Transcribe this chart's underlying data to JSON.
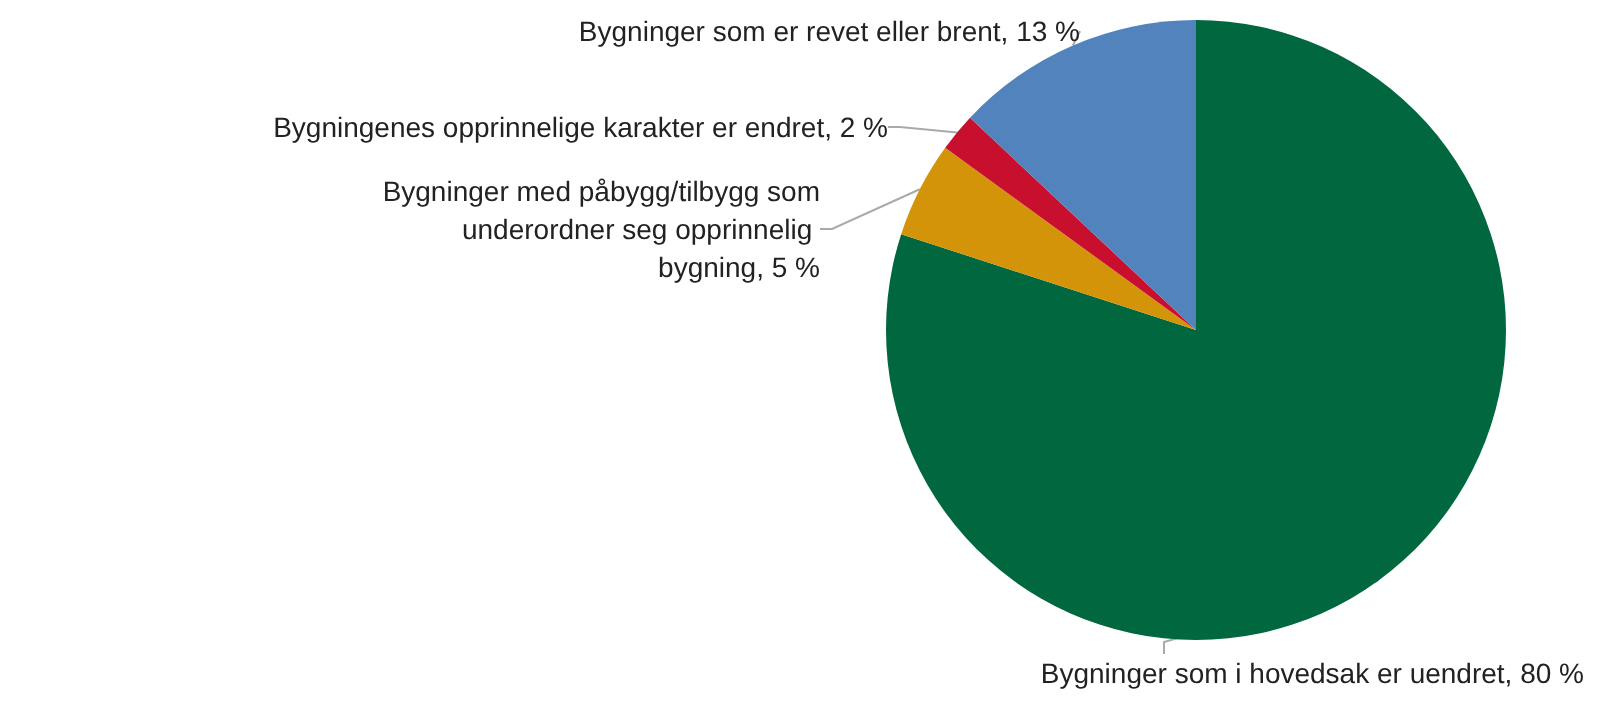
{
  "chart_data": {
    "type": "pie",
    "categories": [
      "Bygninger som i hovedsak er uendret, 80 %",
      "Bygninger med påbygg/tilbygg som underordner seg opprinnelig bygning, 5 %",
      "Bygningenes opprinnelige karakter er endret, 2 %",
      "Bygninger som er revet eller brent, 13 %"
    ],
    "values": [
      80,
      5,
      2,
      13
    ],
    "colors": [
      "#00673e",
      "#d4940a",
      "#c8102e",
      "#5283bd"
    ],
    "legend": false
  }
}
